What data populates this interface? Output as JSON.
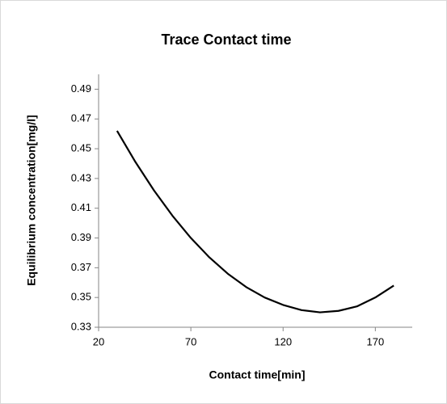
{
  "chart_data": {
    "type": "line",
    "title": "Trace Contact time",
    "x_label": "Contact time[min]",
    "y_label": "Equilibrium concentration[mg/l]",
    "x": [
      30,
      40,
      50,
      60,
      70,
      80,
      90,
      100,
      110,
      120,
      130,
      140,
      150,
      160,
      170,
      180
    ],
    "series": [
      {
        "name": "Trace",
        "color": "#000000",
        "values": [
          0.462,
          0.441,
          0.422,
          0.405,
          0.39,
          0.377,
          0.366,
          0.357,
          0.35,
          0.345,
          0.3415,
          0.34,
          0.341,
          0.344,
          0.35,
          0.358
        ]
      }
    ],
    "xlim": [
      20,
      190
    ],
    "xticks": [
      20,
      70,
      120,
      170
    ],
    "ylim": [
      0.33,
      0.5
    ],
    "yticks": [
      0.33,
      0.35,
      0.37,
      0.39,
      0.41,
      0.43,
      0.45,
      0.47,
      0.49
    ],
    "grid": false
  }
}
